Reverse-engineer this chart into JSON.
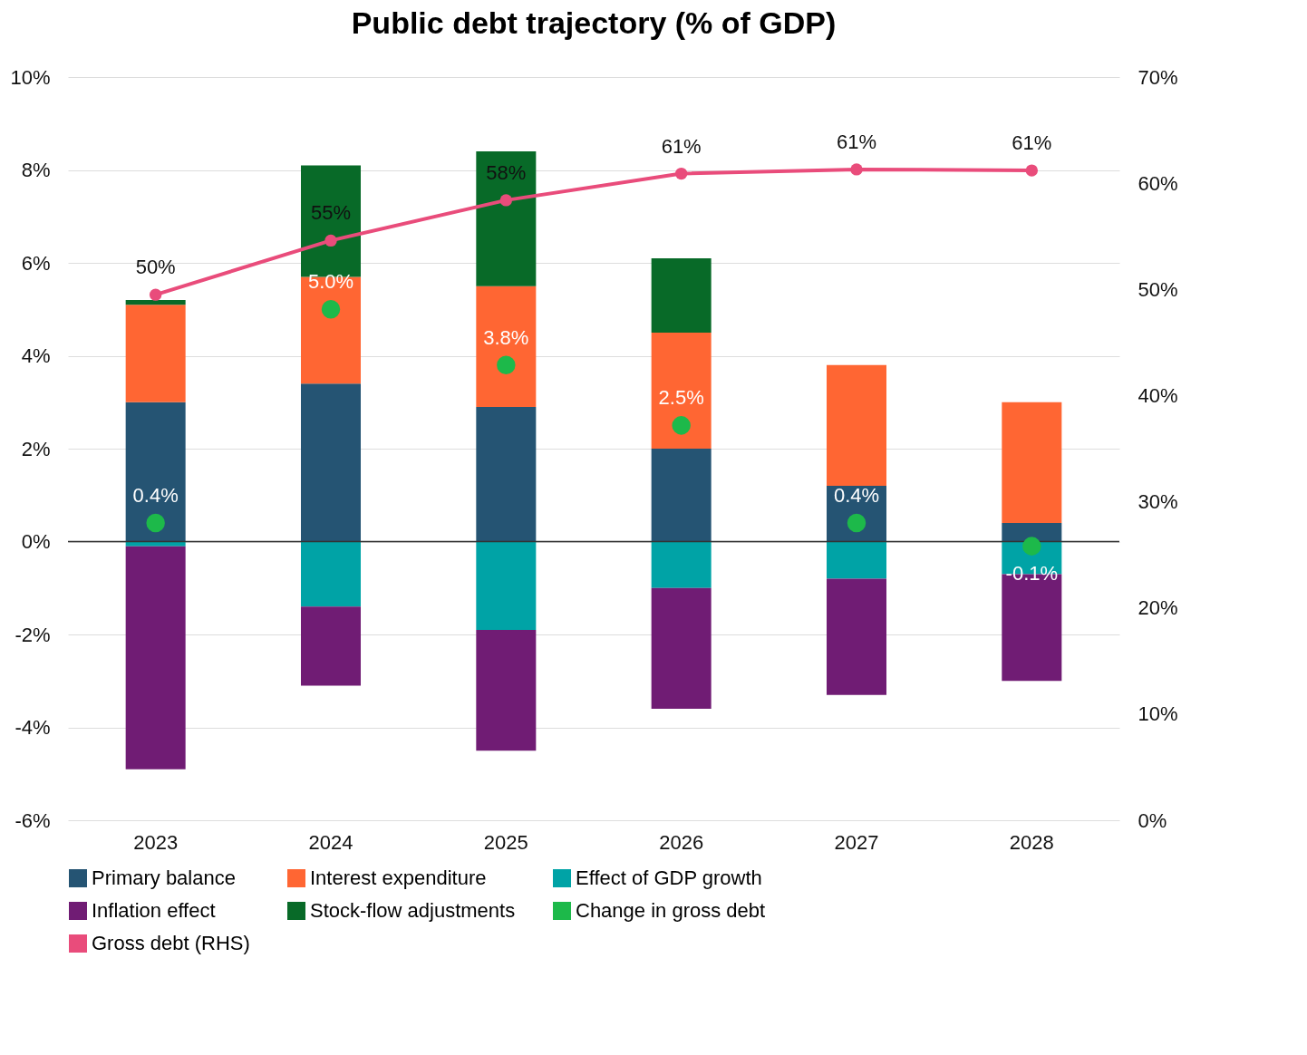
{
  "chart_data": {
    "type": "bar",
    "title": "Public debt trajectory (% of GDP)",
    "stacked": true,
    "categories": [
      "2023",
      "2024",
      "2025",
      "2026",
      "2027",
      "2028"
    ],
    "series": [
      {
        "name": "Primary balance",
        "color": "#255473",
        "values": [
          3.0,
          3.4,
          2.9,
          2.0,
          1.2,
          0.4
        ]
      },
      {
        "name": "Interest expenditure",
        "color": "#ff6633",
        "values": [
          2.1,
          2.3,
          2.6,
          2.5,
          2.6,
          2.6
        ]
      },
      {
        "name": "Effect of GDP growth",
        "color": "#00a3a6",
        "values": [
          -0.1,
          -1.4,
          -1.9,
          -1.0,
          -0.8,
          -0.7
        ]
      },
      {
        "name": "Inflation effect",
        "color": "#701c74",
        "values": [
          -4.8,
          -1.7,
          -2.6,
          -2.6,
          -2.5,
          -2.3
        ]
      },
      {
        "name": "Stock-flow adjustments",
        "color": "#086a28",
        "values": [
          0.1,
          2.4,
          2.9,
          1.6,
          null,
          null
        ]
      },
      {
        "name": "Change in gross debt",
        "type": "scatter",
        "color": "#1db94a",
        "values": [
          0.4,
          5.0,
          3.8,
          2.5,
          0.4,
          -0.1
        ],
        "value_labels": [
          "0.4%",
          "5.0%",
          "3.8%",
          "2.5%",
          "0.4%",
          "-0.1%"
        ]
      },
      {
        "name": "Gross debt (RHS)",
        "type": "line",
        "axis": "y2",
        "marker": "circle",
        "color": "#e94c7b",
        "values": [
          49.5,
          54.6,
          58.4,
          60.9,
          61.3,
          61.2
        ],
        "value_labels": [
          "50%",
          "55%",
          "58%",
          "61%",
          "61%",
          "61%"
        ]
      }
    ],
    "ylim": [
      -6,
      10
    ],
    "yticks": [
      {
        "value": -6,
        "label": "-6%"
      },
      {
        "value": -4,
        "label": "-4%"
      },
      {
        "value": -2,
        "label": "-2%"
      },
      {
        "value": 0,
        "label": "0%"
      },
      {
        "value": 2,
        "label": "2%"
      },
      {
        "value": 4,
        "label": "4%"
      },
      {
        "value": 6,
        "label": "6%"
      },
      {
        "value": 8,
        "label": "8%"
      },
      {
        "value": 10,
        "label": "10%"
      }
    ],
    "y2lim": [
      0,
      70
    ],
    "y2ticks": [
      {
        "value": 0,
        "label": "0%"
      },
      {
        "value": 10,
        "label": "10%"
      },
      {
        "value": 20,
        "label": "20%"
      },
      {
        "value": 30,
        "label": "30%"
      },
      {
        "value": 40,
        "label": "40%"
      },
      {
        "value": 50,
        "label": "50%"
      },
      {
        "value": 60,
        "label": "60%"
      },
      {
        "value": 70,
        "label": "70%"
      }
    ],
    "ref_lines": [
      {
        "axis": "y",
        "value": 0,
        "color": "#333333"
      }
    ],
    "grid": "y",
    "legend": "bottom"
  }
}
